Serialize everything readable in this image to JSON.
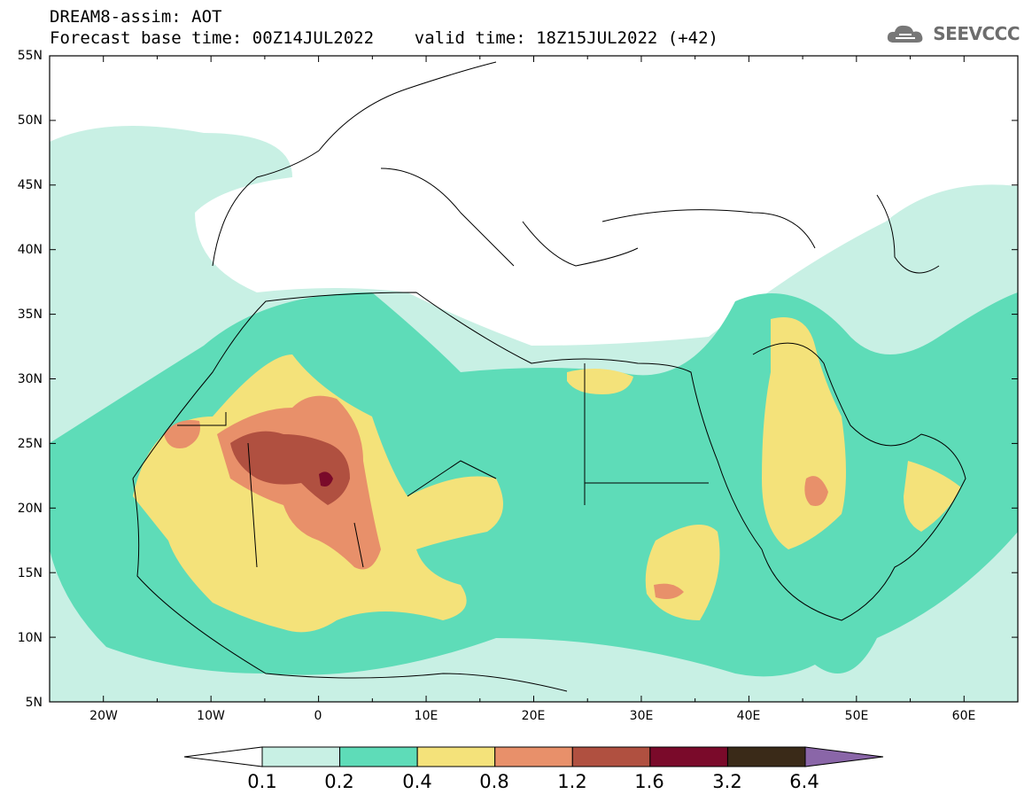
{
  "header": {
    "title_line1": "DREAM8-assim: AOT",
    "title_line2": "Forecast base time: 00Z14JUL2022    valid time: 18Z15JUL2022 (+42)",
    "brand": "SEEVCCC",
    "brand_icon": "cloud-logo-icon"
  },
  "map": {
    "lat_labels": [
      "55N",
      "50N",
      "45N",
      "40N",
      "35N",
      "30N",
      "25N",
      "20N",
      "15N",
      "10N",
      "5N"
    ],
    "lon_labels": [
      "20W",
      "10W",
      "0",
      "10E",
      "20E",
      "30E",
      "40E",
      "50E",
      "60E"
    ],
    "lon_range": [
      -25,
      65
    ],
    "lat_range": [
      5,
      55
    ],
    "colors": {
      "land_line": "#000000",
      "background": "#ffffff"
    }
  },
  "colorbar": {
    "labels": [
      "0.1",
      "0.2",
      "0.4",
      "0.8",
      "1.2",
      "1.6",
      "3.2",
      "6.4"
    ],
    "colors": [
      "#ffffff",
      "#c8f0e4",
      "#5edcb8",
      "#f4e27a",
      "#e8906a",
      "#b05040",
      "#7a0a2a",
      "#3a2a18",
      "#8a66a8"
    ]
  }
}
